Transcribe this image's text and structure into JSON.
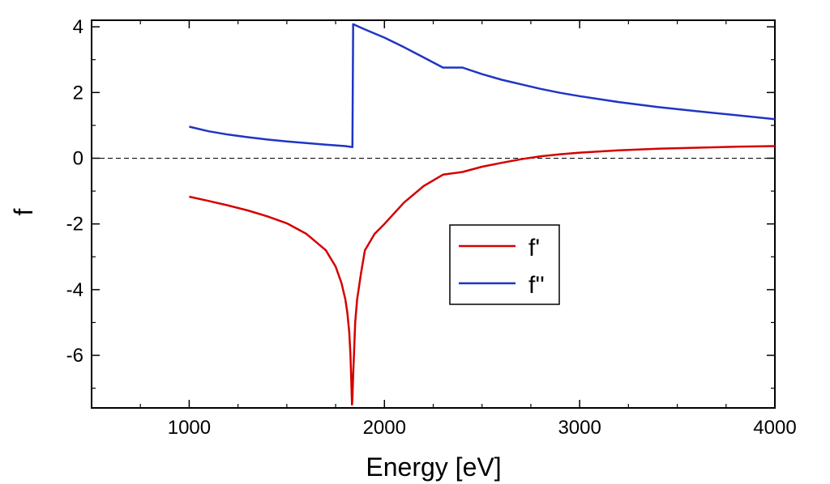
{
  "chart_data": {
    "type": "line",
    "title": "",
    "xlabel": "Energy [eV]",
    "ylabel": "f",
    "xlim": [
      500,
      4000
    ],
    "ylim": [
      -7.6,
      4.2
    ],
    "x_ticks": [
      1000,
      2000,
      3000,
      4000
    ],
    "x_tick_labels": [
      "1000",
      "2000",
      "3000",
      "4000"
    ],
    "y_ticks": [
      4,
      2,
      0,
      -2,
      -4,
      -6
    ],
    "y_tick_labels": [
      "4",
      "2",
      "0",
      "-2",
      "-4",
      "-6"
    ],
    "grid": false,
    "zero_line": true,
    "legend_position": "center-right",
    "series": [
      {
        "name": "f'",
        "color": "#d40000",
        "x": [
          1000,
          1100,
          1200,
          1300,
          1400,
          1500,
          1600,
          1700,
          1750,
          1780,
          1800,
          1810,
          1820,
          1826,
          1830,
          1834,
          1836,
          1840,
          1845,
          1850,
          1860,
          1880,
          1900,
          1950,
          2000,
          2100,
          2200,
          2300,
          2400,
          2500,
          2600,
          2700,
          2800,
          2900,
          3000,
          3200,
          3400,
          3600,
          3800,
          4000
        ],
        "y": [
          -1.17,
          -1.3,
          -1.44,
          -1.59,
          -1.77,
          -1.98,
          -2.3,
          -2.8,
          -3.3,
          -3.8,
          -4.3,
          -4.7,
          -5.3,
          -6.0,
          -6.7,
          -7.5,
          -7.3,
          -6.6,
          -5.8,
          -5.0,
          -4.3,
          -3.5,
          -2.8,
          -2.3,
          -2.0,
          -1.35,
          -0.85,
          -0.5,
          -0.42,
          -0.26,
          -0.14,
          -0.03,
          0.06,
          0.12,
          0.17,
          0.24,
          0.29,
          0.32,
          0.35,
          0.37
        ]
      },
      {
        "name": "f''",
        "color": "#1f35c4",
        "x": [
          1000,
          1100,
          1200,
          1300,
          1400,
          1500,
          1600,
          1700,
          1800,
          1836,
          1840,
          1900,
          2000,
          2100,
          2200,
          2300,
          2400,
          2500,
          2600,
          2700,
          2800,
          2900,
          3000,
          3200,
          3400,
          3600,
          3800,
          4000
        ],
        "y": [
          0.96,
          0.82,
          0.72,
          0.64,
          0.57,
          0.51,
          0.46,
          0.41,
          0.37,
          0.34,
          4.08,
          3.92,
          3.67,
          3.38,
          3.07,
          2.76,
          2.76,
          2.56,
          2.39,
          2.25,
          2.11,
          1.99,
          1.89,
          1.71,
          1.56,
          1.43,
          1.31,
          1.19
        ]
      }
    ]
  }
}
